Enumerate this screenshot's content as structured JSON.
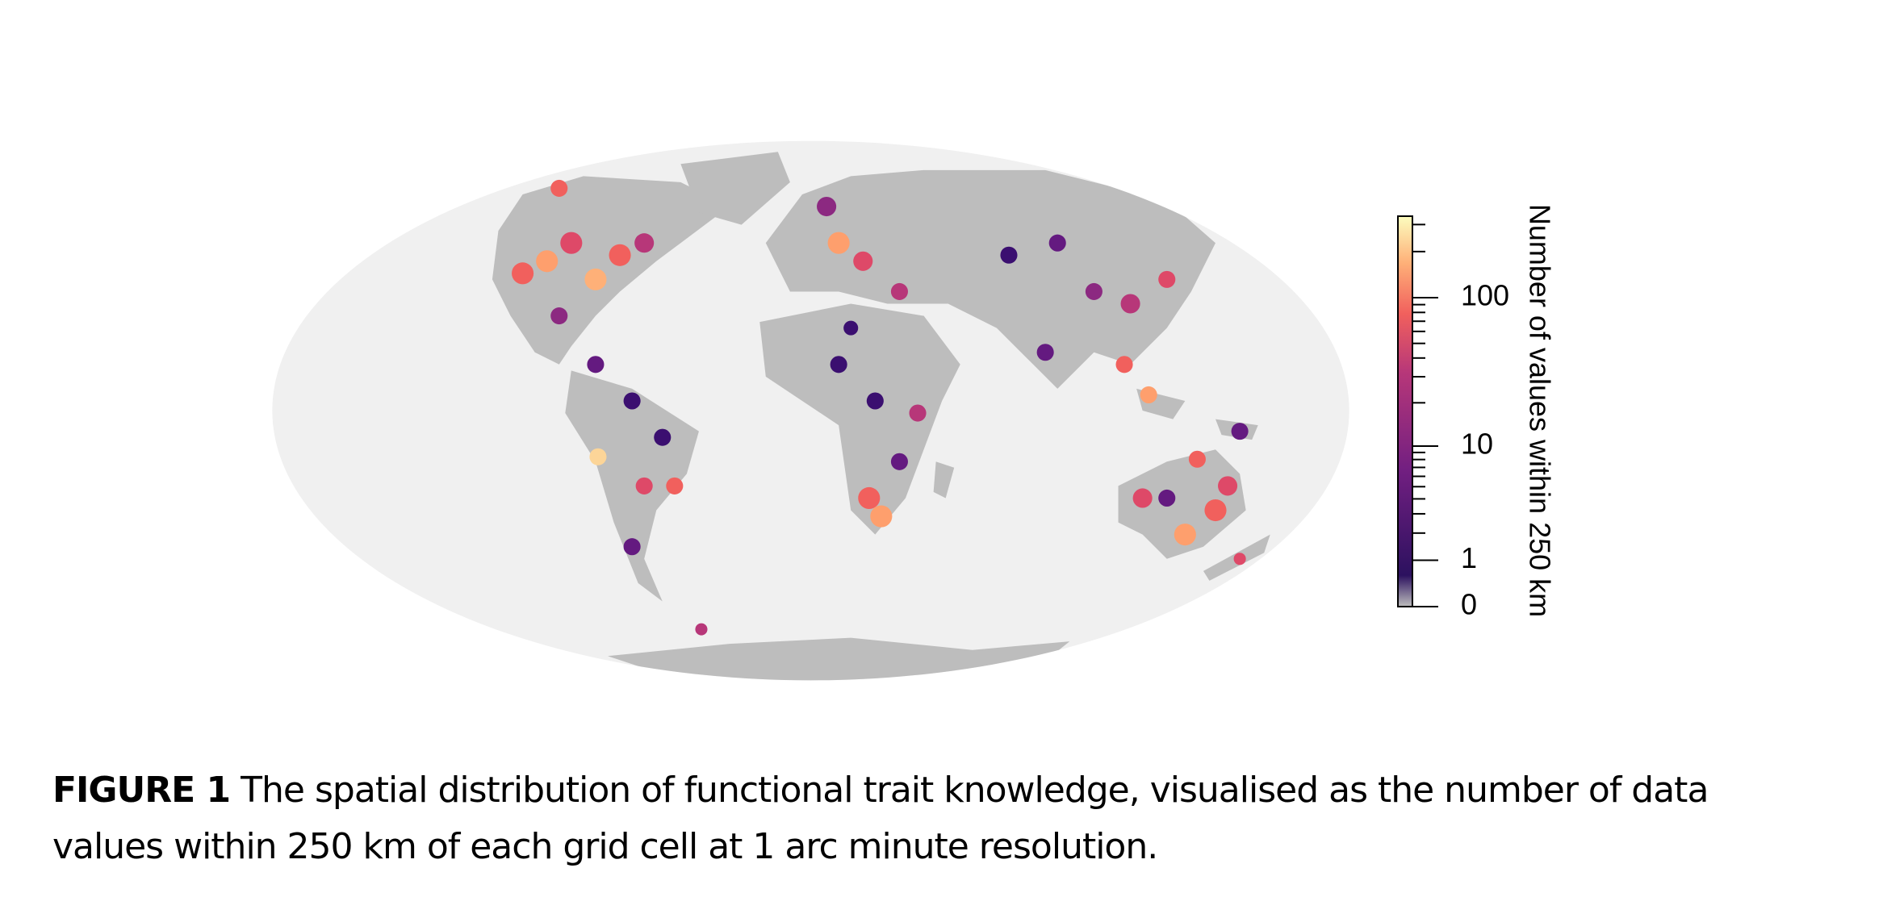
{
  "colorbar": {
    "title": "Number of values within 250 km",
    "scale": "log1p",
    "lim": [
      0,
      340
    ],
    "ticks": [
      0,
      1,
      10,
      100
    ],
    "minor_ticks": [
      2,
      3,
      4,
      5,
      6,
      7,
      8,
      9,
      20,
      30,
      40,
      50,
      60,
      70,
      80,
      90,
      200,
      300
    ]
  },
  "caption": {
    "label": "FIGURE 1",
    "text": "The spatial distribution of functional trait knowledge, visualised as the number of data values within 250 km of each grid cell at 1 arc minute resolution."
  }
}
